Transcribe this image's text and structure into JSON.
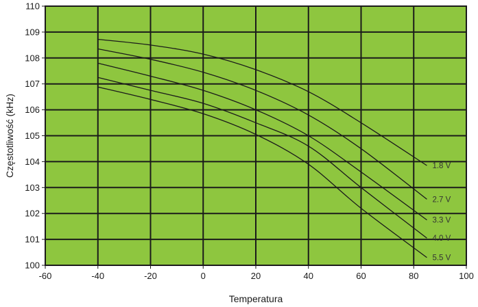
{
  "chart_data": {
    "type": "line",
    "title": "",
    "xlabel": "Temperatura",
    "ylabel": "Częstotliwość (kHz)",
    "xlim": [
      -60,
      100
    ],
    "ylim": [
      100,
      110
    ],
    "x_ticks": [
      -60,
      -40,
      -20,
      0,
      20,
      40,
      60,
      80,
      100
    ],
    "y_ticks": [
      100,
      101,
      102,
      103,
      104,
      105,
      106,
      107,
      108,
      109,
      110
    ],
    "x_tick_labels": [
      "-60",
      "-40",
      "-20",
      "0",
      "20",
      "40",
      "60",
      "80",
      "100"
    ],
    "y_tick_labels": [
      "100",
      "101",
      "102",
      "103",
      "104",
      "105",
      "106",
      "107",
      "108",
      "109",
      "110"
    ],
    "grid": true,
    "legend": "inline labels at line ends",
    "x": [
      -40,
      -20,
      0,
      20,
      40,
      60,
      85
    ],
    "series": [
      {
        "name": "1.8 V",
        "values": [
          108.72,
          108.5,
          108.15,
          107.55,
          106.7,
          105.5,
          103.85
        ]
      },
      {
        "name": "2.7 V",
        "values": [
          108.35,
          107.95,
          107.45,
          106.75,
          105.8,
          104.5,
          102.55
        ]
      },
      {
        "name": "3.3 V",
        "values": [
          107.8,
          107.3,
          106.75,
          106.0,
          105.0,
          103.6,
          101.75
        ]
      },
      {
        "name": "4.0 V",
        "values": [
          107.25,
          106.75,
          106.25,
          105.5,
          104.6,
          103.0,
          101.05
        ]
      },
      {
        "name": "5.5 V",
        "values": [
          106.88,
          106.4,
          105.85,
          105.05,
          103.9,
          102.2,
          100.3
        ]
      }
    ],
    "colors": {
      "plot_background": "#8ec63f",
      "grid": "#1a1a1a",
      "series_line": "#1a1a1a",
      "series_label": "#333333"
    }
  }
}
